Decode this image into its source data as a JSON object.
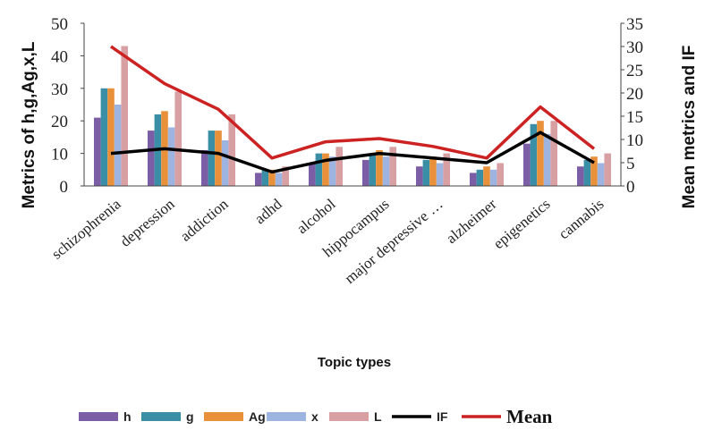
{
  "chart_data": {
    "type": "bar",
    "categories": [
      "schizophrenia",
      "depression",
      "addiction",
      "adhd",
      "alcohol",
      "hippocampus",
      "major depressive …",
      "alzheimer",
      "epigenetics",
      "cannabis"
    ],
    "series": [
      {
        "name": "h",
        "type": "bar",
        "axis": "left",
        "color": "#7b5ea6",
        "values": [
          21,
          17,
          11,
          4,
          7,
          8,
          6,
          4,
          13,
          6
        ]
      },
      {
        "name": "g",
        "type": "bar",
        "axis": "left",
        "color": "#3a8fa6",
        "values": [
          30,
          22,
          17,
          5,
          10,
          10,
          8,
          5,
          19,
          8
        ]
      },
      {
        "name": "Ag",
        "type": "bar",
        "axis": "left",
        "color": "#e8913a",
        "values": [
          30,
          23,
          17,
          5,
          10,
          11,
          9,
          6,
          20,
          9
        ]
      },
      {
        "name": "x",
        "type": "bar",
        "axis": "left",
        "color": "#9db3e0",
        "values": [
          25,
          18,
          14,
          4,
          9,
          9,
          7,
          5,
          16,
          7
        ]
      },
      {
        "name": "L",
        "type": "bar",
        "axis": "left",
        "color": "#d9a0a3",
        "values": [
          43,
          29,
          22,
          6,
          12,
          12,
          10,
          7,
          20,
          10
        ]
      },
      {
        "name": "IF",
        "type": "line",
        "axis": "right",
        "color": "#000000",
        "values": [
          7,
          8,
          7,
          3,
          5.5,
          7,
          6,
          5,
          11.5,
          5
        ]
      },
      {
        "name": "Mean",
        "type": "line",
        "axis": "right",
        "color": "#cc2222",
        "values": [
          30,
          22,
          16.5,
          6,
          9.5,
          10.2,
          8.5,
          6,
          17,
          8
        ]
      }
    ],
    "xlabel": "Topic types",
    "ylabel": "Metrics of h,g,Ag,x,L",
    "y2label": "Mean metrics and IF",
    "ylim": [
      0,
      50
    ],
    "y2lim": [
      0,
      35
    ],
    "yticks": [
      0,
      10,
      20,
      30,
      40,
      50
    ],
    "y2ticks": [
      0,
      5,
      10,
      15,
      20,
      25,
      30,
      35
    ],
    "grid": false,
    "legend": "bottom"
  }
}
